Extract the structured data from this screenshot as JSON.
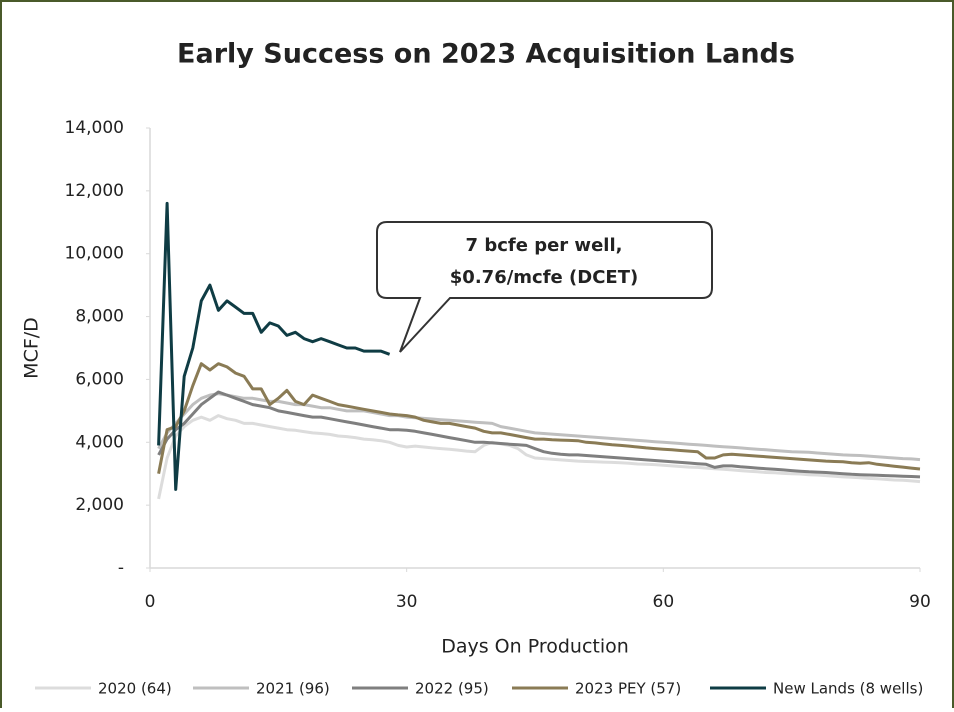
{
  "chart_data": {
    "type": "line",
    "title": "Early Success on 2023 Acquisition Lands",
    "xlabel": "Days On Production",
    "ylabel": "MCF/D",
    "annotation": [
      "7 bcfe per well,",
      "$0.76/mcfe (DCET)"
    ],
    "xlim": [
      0,
      90
    ],
    "xticks": [
      0,
      30,
      60,
      90
    ],
    "ylim": [
      0,
      14000
    ],
    "yticks": [
      {
        "value": 0,
        "label": "-"
      },
      {
        "value": 2000,
        "label": "2,000"
      },
      {
        "value": 4000,
        "label": "4,000"
      },
      {
        "value": 6000,
        "label": "6,000"
      },
      {
        "value": 8000,
        "label": "8,000"
      },
      {
        "value": 10000,
        "label": "10,000"
      },
      {
        "value": 12000,
        "label": "12,000"
      },
      {
        "value": 14000,
        "label": "14,000"
      }
    ],
    "x": [
      1,
      2,
      3,
      4,
      5,
      6,
      7,
      8,
      9,
      10,
      11,
      12,
      13,
      14,
      15,
      16,
      17,
      18,
      19,
      20,
      21,
      22,
      23,
      24,
      25,
      26,
      27,
      28,
      29,
      30,
      31,
      32,
      33,
      34,
      35,
      36,
      37,
      38,
      39,
      40,
      41,
      42,
      43,
      44,
      45,
      46,
      47,
      48,
      49,
      50,
      51,
      52,
      53,
      54,
      55,
      56,
      57,
      58,
      59,
      60,
      61,
      62,
      63,
      64,
      65,
      66,
      67,
      68,
      69,
      70,
      71,
      72,
      73,
      74,
      75,
      76,
      77,
      78,
      79,
      80,
      81,
      82,
      83,
      84,
      85,
      86,
      87,
      88,
      89,
      90
    ],
    "series": [
      {
        "name": "2020 (64)",
        "color": "#dcdcdc",
        "values": [
          2200,
          3500,
          4200,
          4500,
          4700,
          4800,
          4700,
          4850,
          4750,
          4700,
          4600,
          4600,
          4550,
          4500,
          4450,
          4400,
          4380,
          4340,
          4300,
          4280,
          4250,
          4200,
          4180,
          4150,
          4100,
          4080,
          4050,
          4000,
          3900,
          3850,
          3880,
          3850,
          3820,
          3800,
          3780,
          3750,
          3720,
          3700,
          3900,
          4000,
          3950,
          3900,
          3800,
          3600,
          3500,
          3480,
          3460,
          3440,
          3420,
          3400,
          3390,
          3380,
          3370,
          3360,
          3350,
          3330,
          3310,
          3300,
          3290,
          3270,
          3250,
          3230,
          3210,
          3200,
          3180,
          3160,
          3140,
          3120,
          3100,
          3080,
          3060,
          3040,
          3030,
          3010,
          3000,
          2990,
          2970,
          2960,
          2940,
          2920,
          2900,
          2890,
          2870,
          2850,
          2840,
          2820,
          2800,
          2790,
          2770,
          2750
        ]
      },
      {
        "name": "2021 (96)",
        "color": "#bfbfbf",
        "values": [
          3800,
          4300,
          4600,
          4900,
          5200,
          5400,
          5500,
          5550,
          5500,
          5450,
          5400,
          5400,
          5350,
          5300,
          5300,
          5250,
          5200,
          5200,
          5150,
          5100,
          5100,
          5050,
          5000,
          5000,
          5000,
          4950,
          4900,
          4850,
          4850,
          4800,
          4780,
          4760,
          4740,
          4720,
          4700,
          4680,
          4660,
          4640,
          4620,
          4600,
          4500,
          4450,
          4400,
          4350,
          4300,
          4280,
          4260,
          4240,
          4220,
          4200,
          4180,
          4160,
          4140,
          4120,
          4100,
          4080,
          4060,
          4040,
          4020,
          4000,
          3980,
          3960,
          3940,
          3920,
          3900,
          3880,
          3860,
          3840,
          3820,
          3800,
          3780,
          3760,
          3740,
          3720,
          3700,
          3690,
          3680,
          3660,
          3640,
          3620,
          3600,
          3590,
          3580,
          3560,
          3540,
          3520,
          3500,
          3480,
          3470,
          3450
        ]
      },
      {
        "name": "2022 (95)",
        "color": "#7f7f7f",
        "values": [
          3600,
          4100,
          4400,
          4600,
          4900,
          5200,
          5400,
          5600,
          5500,
          5400,
          5300,
          5200,
          5150,
          5100,
          5000,
          4950,
          4900,
          4850,
          4800,
          4800,
          4750,
          4700,
          4650,
          4600,
          4550,
          4500,
          4450,
          4400,
          4400,
          4380,
          4350,
          4300,
          4250,
          4200,
          4150,
          4100,
          4050,
          4000,
          4000,
          3980,
          3960,
          3940,
          3920,
          3900,
          3800,
          3700,
          3650,
          3620,
          3600,
          3600,
          3580,
          3560,
          3540,
          3520,
          3500,
          3480,
          3460,
          3440,
          3420,
          3400,
          3380,
          3360,
          3340,
          3320,
          3300,
          3200,
          3250,
          3250,
          3220,
          3200,
          3180,
          3160,
          3140,
          3120,
          3100,
          3080,
          3060,
          3050,
          3040,
          3020,
          3000,
          2980,
          2970,
          2960,
          2950,
          2940,
          2930,
          2920,
          2910,
          2900
        ]
      },
      {
        "name": "2023 PEY (57)",
        "color": "#8a7b55",
        "values": [
          3000,
          4400,
          4500,
          5000,
          5800,
          6500,
          6300,
          6500,
          6400,
          6200,
          6100,
          5700,
          5700,
          5200,
          5400,
          5650,
          5300,
          5200,
          5500,
          5400,
          5300,
          5200,
          5150,
          5100,
          5050,
          5000,
          4950,
          4900,
          4870,
          4850,
          4800,
          4700,
          4650,
          4600,
          4600,
          4550,
          4500,
          4450,
          4350,
          4300,
          4300,
          4250,
          4200,
          4150,
          4100,
          4100,
          4080,
          4070,
          4060,
          4050,
          4000,
          3980,
          3950,
          3920,
          3900,
          3880,
          3850,
          3820,
          3800,
          3780,
          3760,
          3740,
          3720,
          3700,
          3500,
          3500,
          3600,
          3620,
          3600,
          3580,
          3560,
          3540,
          3520,
          3500,
          3480,
          3460,
          3440,
          3420,
          3400,
          3390,
          3380,
          3350,
          3330,
          3350,
          3300,
          3270,
          3240,
          3210,
          3180,
          3150
        ]
      },
      {
        "name": "New Lands (8 wells)",
        "color": "#0f3c44",
        "values": [
          3900,
          11600,
          2500,
          6100,
          7000,
          8500,
          9000,
          8200,
          8500,
          8300,
          8100,
          8100,
          7500,
          7800,
          7700,
          7400,
          7500,
          7300,
          7200,
          7300,
          7200,
          7100,
          7000,
          7000,
          6900,
          6900,
          6900,
          6800,
          null,
          null,
          null,
          null,
          null,
          null,
          null,
          null,
          null,
          null,
          null,
          null,
          null,
          null,
          null,
          null,
          null,
          null,
          null,
          null,
          null,
          null,
          null,
          null,
          null,
          null,
          null,
          null,
          null,
          null,
          null,
          null,
          null,
          null,
          null,
          null,
          null,
          null,
          null,
          null,
          null,
          null,
          null,
          null,
          null,
          null,
          null,
          null,
          null,
          null,
          null,
          null,
          null,
          null,
          null,
          null,
          null,
          null,
          null,
          null,
          null,
          null
        ]
      }
    ]
  }
}
